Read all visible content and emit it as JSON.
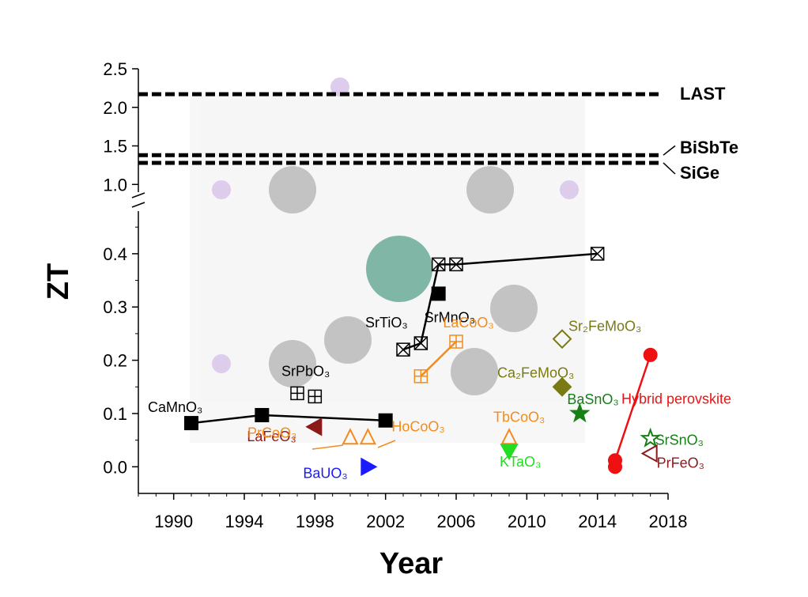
{
  "chart_data": {
    "type": "scatter",
    "x_label": "Year",
    "y_label": "ZT",
    "xlim": [
      1988,
      2018
    ],
    "xticks": [
      1990,
      1994,
      1998,
      2002,
      2006,
      2010,
      2014,
      2018
    ],
    "ylim": [
      -0.05,
      0.48
    ],
    "yticks": [
      {
        "value": 0,
        "label": "0.0"
      },
      0.1,
      0.2,
      0.3,
      0.4
    ],
    "ylim_upper": [
      0.9,
      2.5
    ],
    "yticks_upper": [
      {
        "value": 1,
        "label": "1.0"
      },
      1.5,
      {
        "value": 2,
        "label": "2.0"
      },
      2.5
    ],
    "reference_lines": [
      {
        "name": "LAST",
        "value": 2.17
      },
      {
        "name": "BiSbTe",
        "value": 1.38
      },
      {
        "name": "SiGe",
        "value": 1.28
      }
    ],
    "series": [
      {
        "name": "CaMnO₃",
        "color": "#000000",
        "marker": "square",
        "filled": true,
        "line": true,
        "x": [
          1991,
          1995,
          2002
        ],
        "values": [
          0.082,
          0.097,
          0.087
        ]
      },
      {
        "name": "SrMnO₃",
        "color": "#000000",
        "marker": "square",
        "filled": true,
        "line": false,
        "x": [
          2005
        ],
        "values": [
          0.325
        ]
      },
      {
        "name": "SrTiO₃",
        "color": "#000000",
        "marker": "boxcross",
        "filled": false,
        "line": true,
        "x": [
          2003,
          2004,
          2005,
          2006,
          2014
        ],
        "values": [
          0.22,
          0.232,
          0.38,
          0.38,
          0.4
        ]
      },
      {
        "name": "SrPbO₃",
        "color": "#000000",
        "marker": "boxplus",
        "filled": false,
        "line": false,
        "x": [
          1997,
          1998
        ],
        "values": [
          0.138,
          0.132
        ]
      },
      {
        "name": "LaFeO₃",
        "color": "#8b1a1a",
        "marker": "left",
        "filled": true,
        "line": false,
        "x": [
          1998
        ],
        "values": [
          0.075
        ]
      },
      {
        "name": "PrCoO₃",
        "color": "#f28c1e",
        "marker": "up",
        "filled": false,
        "line": false,
        "x": [
          2000
        ],
        "values": [
          0.055
        ]
      },
      {
        "name": "HoCoO₃",
        "color": "#f28c1e",
        "marker": "up",
        "filled": false,
        "line": false,
        "x": [
          2001
        ],
        "values": [
          0.055
        ]
      },
      {
        "name": "BaUO₃",
        "color": "#1a1aff",
        "marker": "right",
        "filled": true,
        "line": false,
        "x": [
          2001
        ],
        "values": [
          0.0
        ]
      },
      {
        "name": "LaCoO₃",
        "color": "#f28c1e",
        "marker": "boxplus",
        "filled": false,
        "line": true,
        "x": [
          2004,
          2006
        ],
        "values": [
          0.17,
          0.235
        ]
      },
      {
        "name": "TbCoO₃",
        "color": "#f28c1e",
        "marker": "up",
        "filled": false,
        "line": false,
        "x": [
          2009
        ],
        "values": [
          0.055
        ]
      },
      {
        "name": "KTaO₃",
        "color": "#22dd22",
        "marker": "down",
        "filled": true,
        "line": false,
        "x": [
          2009
        ],
        "values": [
          0.03
        ]
      },
      {
        "name": "Sr₂FeMoO₃",
        "color": "#7a7a14",
        "marker": "diamond",
        "filled": false,
        "line": false,
        "x": [
          2012
        ],
        "values": [
          0.24
        ]
      },
      {
        "name": "Ca₂FeMoO₃",
        "color": "#7a7a14",
        "marker": "diamond",
        "filled": true,
        "line": false,
        "x": [
          2012
        ],
        "values": [
          0.15
        ]
      },
      {
        "name": "BaSnO₃",
        "color": "#168016",
        "marker": "star",
        "filled": true,
        "line": false,
        "x": [
          2013
        ],
        "values": [
          0.1
        ]
      },
      {
        "name": "SrSnO₃",
        "color": "#168016",
        "marker": "star",
        "filled": false,
        "line": false,
        "x": [
          2017
        ],
        "values": [
          0.053
        ]
      },
      {
        "name": "PrFeO₃",
        "color": "#8b1a1a",
        "marker": "left",
        "filled": false,
        "line": false,
        "x": [
          2017
        ],
        "values": [
          0.025
        ]
      },
      {
        "name": "Hybrid perovskite",
        "color": "#ee1111",
        "marker": "circle",
        "filled": true,
        "line": true,
        "x": [
          2015,
          2015,
          2017
        ],
        "values": [
          0.0,
          0.012,
          0.21
        ]
      }
    ]
  }
}
